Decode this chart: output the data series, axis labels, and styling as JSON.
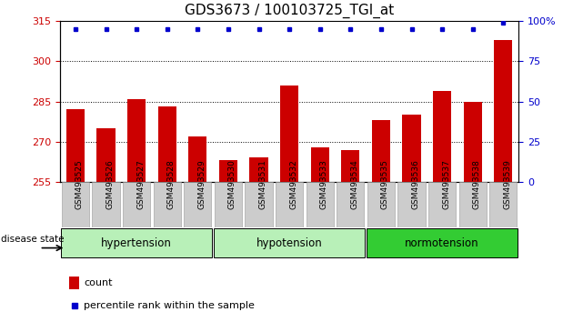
{
  "title": "GDS3673 / 100103725_TGI_at",
  "samples": [
    "GSM493525",
    "GSM493526",
    "GSM493527",
    "GSM493528",
    "GSM493529",
    "GSM493530",
    "GSM493531",
    "GSM493532",
    "GSM493533",
    "GSM493534",
    "GSM493535",
    "GSM493536",
    "GSM493537",
    "GSM493538",
    "GSM493539"
  ],
  "counts": [
    282,
    275,
    286,
    283,
    272,
    263,
    264,
    291,
    268,
    267,
    278,
    280,
    289,
    285,
    308
  ],
  "percentiles": [
    95,
    95,
    95,
    95,
    95,
    95,
    95,
    95,
    95,
    95,
    95,
    95,
    95,
    95,
    99
  ],
  "ylim_left": [
    255,
    315
  ],
  "ylim_right": [
    0,
    100
  ],
  "yticks_left": [
    255,
    270,
    285,
    300,
    315
  ],
  "yticks_right": [
    0,
    25,
    50,
    75,
    100
  ],
  "bar_color": "#cc0000",
  "dot_color": "#0000cc",
  "groups": [
    {
      "label": "hypertension",
      "start": 0,
      "end": 5
    },
    {
      "label": "hypotension",
      "start": 5,
      "end": 10
    },
    {
      "label": "normotension",
      "start": 10,
      "end": 15
    }
  ],
  "group_colors": [
    "#b8f0b8",
    "#b8f0b8",
    "#33cc33"
  ],
  "disease_state_label": "disease state",
  "legend_count_label": "count",
  "legend_percentile_label": "percentile rank within the sample",
  "title_fontsize": 11,
  "axis_label_color_left": "#cc0000",
  "axis_label_color_right": "#0000cc",
  "xtick_bg_color": "#cccccc"
}
